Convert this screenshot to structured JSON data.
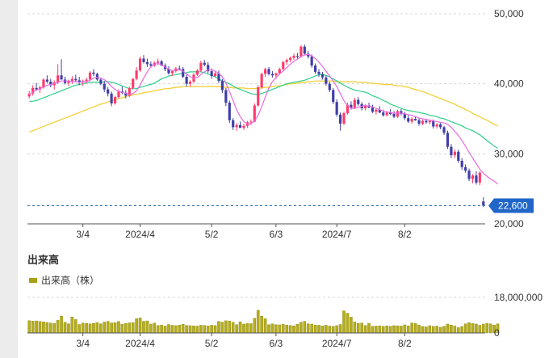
{
  "chart_data": {
    "type": "candlestick",
    "price_axis": {
      "min": 20000,
      "max": 50000,
      "ticks": [
        "50,000",
        "40,000",
        "30,000",
        "20,000"
      ]
    },
    "x_ticks": [
      "3/4",
      "2024/4",
      "5/2",
      "6/3",
      "2024/7",
      "8/2"
    ],
    "last_price": {
      "value": 22600,
      "label": "22,600"
    },
    "candles": [
      [
        38200,
        39000,
        37900,
        38600
      ],
      [
        38600,
        39800,
        38300,
        39400
      ],
      [
        39400,
        40100,
        39000,
        39200
      ],
      [
        39200,
        39700,
        38700,
        39500
      ],
      [
        39500,
        40800,
        39300,
        40600
      ],
      [
        40600,
        41200,
        40100,
        40300
      ],
      [
        40300,
        40700,
        39500,
        39800
      ],
      [
        39800,
        40500,
        39200,
        40200
      ],
      [
        40200,
        42800,
        40000,
        41200
      ],
      [
        41200,
        43500,
        40800,
        40600
      ],
      [
        40600,
        41000,
        39900,
        40100
      ],
      [
        40100,
        40600,
        39700,
        40400
      ],
      [
        40400,
        41100,
        40000,
        40700
      ],
      [
        40700,
        41300,
        40200,
        40500
      ],
      [
        40500,
        41000,
        39800,
        40200
      ],
      [
        40200,
        40600,
        39700,
        40400
      ],
      [
        40400,
        40900,
        40100,
        40600
      ],
      [
        40600,
        41800,
        40400,
        41600
      ],
      [
        41600,
        42100,
        41100,
        41400
      ],
      [
        41400,
        41600,
        40400,
        40600
      ],
      [
        40600,
        40900,
        39800,
        40000
      ],
      [
        40000,
        40400,
        38800,
        39200
      ],
      [
        39200,
        39500,
        38200,
        38600
      ],
      [
        38600,
        38900,
        36800,
        37200
      ],
      [
        37200,
        38300,
        37000,
        38100
      ],
      [
        38100,
        39200,
        37900,
        38900
      ],
      [
        38900,
        39600,
        38500,
        38700
      ],
      [
        38700,
        39100,
        37900,
        38300
      ],
      [
        38300,
        39600,
        38100,
        39400
      ],
      [
        39400,
        40800,
        39200,
        40700
      ],
      [
        40700,
        42400,
        40500,
        41900
      ],
      [
        41900,
        43900,
        41700,
        43600
      ],
      [
        43600,
        44100,
        42900,
        43100
      ],
      [
        43100,
        43600,
        42400,
        42800
      ],
      [
        42800,
        43200,
        42300,
        42600
      ],
      [
        42600,
        43200,
        42400,
        43000
      ],
      [
        43000,
        43600,
        42700,
        43200
      ],
      [
        43200,
        43400,
        42500,
        42600
      ],
      [
        42600,
        42900,
        41800,
        42100
      ],
      [
        42100,
        42500,
        41300,
        41500
      ],
      [
        41500,
        42000,
        41100,
        41800
      ],
      [
        41800,
        42400,
        41600,
        42200
      ],
      [
        42200,
        42600,
        41900,
        42100
      ],
      [
        42100,
        42400,
        40800,
        41000
      ],
      [
        41000,
        41400,
        39600,
        40000
      ],
      [
        40000,
        40500,
        39600,
        40300
      ],
      [
        40300,
        41500,
        40100,
        41300
      ],
      [
        41300,
        42100,
        41100,
        41900
      ],
      [
        41900,
        43300,
        41700,
        43000
      ],
      [
        43000,
        43400,
        42500,
        42700
      ],
      [
        42700,
        43100,
        41500,
        41800
      ],
      [
        41800,
        42200,
        40700,
        41100
      ],
      [
        41100,
        41800,
        40900,
        41500
      ],
      [
        41500,
        41900,
        40100,
        40400
      ],
      [
        40400,
        40700,
        38700,
        39100
      ],
      [
        39100,
        39400,
        36800,
        37300
      ],
      [
        37300,
        37600,
        34400,
        34800
      ],
      [
        34800,
        35100,
        33400,
        33800
      ],
      [
        33800,
        34400,
        33300,
        34100
      ],
      [
        34100,
        34600,
        33800,
        33700
      ],
      [
        33700,
        34300,
        33400,
        34000
      ],
      [
        34000,
        34700,
        33700,
        34500
      ],
      [
        34500,
        34900,
        34100,
        34600
      ],
      [
        34600,
        37200,
        34500,
        36900
      ],
      [
        36900,
        39800,
        36700,
        39500
      ],
      [
        39500,
        41600,
        39300,
        41400
      ],
      [
        41400,
        42300,
        41000,
        42100
      ],
      [
        42100,
        42400,
        41200,
        41400
      ],
      [
        41400,
        41800,
        40900,
        41200
      ],
      [
        41200,
        41600,
        40700,
        41500
      ],
      [
        41500,
        42300,
        41300,
        42100
      ],
      [
        42100,
        43300,
        41900,
        43100
      ],
      [
        43100,
        43600,
        42700,
        43400
      ],
      [
        43400,
        43900,
        43100,
        43700
      ],
      [
        43700,
        44300,
        43400,
        44000
      ],
      [
        44000,
        44400,
        43600,
        43900
      ],
      [
        43900,
        45500,
        43700,
        45300
      ],
      [
        45300,
        45600,
        44100,
        44300
      ],
      [
        44300,
        44700,
        43600,
        43900
      ],
      [
        43900,
        44200,
        42300,
        42600
      ],
      [
        42600,
        42900,
        41400,
        41700
      ],
      [
        41700,
        42100,
        41000,
        41400
      ],
      [
        41400,
        41700,
        40600,
        40900
      ],
      [
        40900,
        41200,
        39700,
        40000
      ],
      [
        40000,
        40300,
        38800,
        39100
      ],
      [
        39100,
        39400,
        37100,
        37400
      ],
      [
        37400,
        37800,
        35300,
        35600
      ],
      [
        35600,
        35900,
        33300,
        34300
      ],
      [
        34300,
        36000,
        34100,
        35800
      ],
      [
        35800,
        37300,
        35600,
        37000
      ],
      [
        37000,
        37500,
        36300,
        36600
      ],
      [
        36600,
        38000,
        36400,
        37700
      ],
      [
        37700,
        38100,
        36800,
        37100
      ],
      [
        37100,
        37400,
        36200,
        36500
      ],
      [
        36500,
        37100,
        36200,
        36900
      ],
      [
        36900,
        37300,
        36500,
        36600
      ],
      [
        36600,
        37000,
        35800,
        36000
      ],
      [
        36000,
        36500,
        35600,
        36300
      ],
      [
        36300,
        36800,
        35800,
        35900
      ],
      [
        35900,
        36300,
        35300,
        35500
      ],
      [
        35500,
        36100,
        35300,
        35900
      ],
      [
        35900,
        36400,
        35500,
        35700
      ],
      [
        35700,
        36100,
        35100,
        35300
      ],
      [
        35300,
        36300,
        35100,
        36100
      ],
      [
        36100,
        36400,
        35500,
        35700
      ],
      [
        35700,
        36000,
        34800,
        35100
      ],
      [
        35100,
        35600,
        34400,
        34600
      ],
      [
        34600,
        35200,
        34300,
        35000
      ],
      [
        35000,
        35400,
        34700,
        34800
      ],
      [
        34800,
        35100,
        34000,
        34300
      ],
      [
        34300,
        34900,
        34100,
        34700
      ],
      [
        34700,
        35000,
        34300,
        34500
      ],
      [
        34500,
        34900,
        34200,
        34700
      ],
      [
        34700,
        34900,
        33600,
        33900
      ],
      [
        33900,
        34400,
        33600,
        34200
      ],
      [
        34200,
        34400,
        33500,
        33800
      ],
      [
        33800,
        34000,
        32700,
        33000
      ],
      [
        33000,
        33300,
        30700,
        31000
      ],
      [
        31000,
        31400,
        29400,
        29800
      ],
      [
        29800,
        30600,
        29400,
        30300
      ],
      [
        30300,
        30600,
        28700,
        29000
      ],
      [
        29000,
        29400,
        27700,
        28100
      ],
      [
        28100,
        28500,
        27300,
        27600
      ],
      [
        27600,
        27900,
        26100,
        26400
      ],
      [
        26400,
        27100,
        25800,
        26900
      ],
      [
        26900,
        27500,
        25600,
        25900
      ],
      [
        25900,
        27500,
        25500,
        27300
      ],
      [
        23200,
        23800,
        22400,
        22600
      ]
    ],
    "ma_short": [
      38400,
      38800,
      39100,
      39300,
      39500,
      39800,
      39900,
      40000,
      40200,
      40400,
      40400,
      40400,
      40300,
      40300,
      40200,
      40300,
      40300,
      40500,
      40800,
      40900,
      40800,
      40600,
      40200,
      39600,
      39200,
      38900,
      38800,
      38600,
      38500,
      38600,
      39000,
      39800,
      40800,
      41700,
      42400,
      42800,
      42900,
      42700,
      42400,
      42100,
      41900,
      41900,
      42000,
      41800,
      41400,
      41000,
      40800,
      40900,
      41300,
      41700,
      42000,
      42000,
      41800,
      41500,
      41000,
      40100,
      38900,
      37600,
      36300,
      35300,
      34600,
      34300,
      34300,
      34700,
      35500,
      36700,
      38100,
      39400,
      40300,
      40900,
      41400,
      41800,
      42300,
      42800,
      43200,
      43500,
      43900,
      44100,
      44200,
      44000,
      43600,
      43100,
      42500,
      41800,
      41100,
      40400,
      39600,
      38600,
      37600,
      36900,
      36500,
      36500,
      36600,
      36800,
      36900,
      36800,
      36700,
      36500,
      36300,
      36100,
      36000,
      35900,
      35800,
      35800,
      35800,
      35700,
      35600,
      35500,
      35300,
      35100,
      35000,
      34900,
      34800,
      34700,
      34600,
      34500,
      34400,
      34200,
      33800,
      33200,
      32600,
      31900,
      31100,
      30200,
      29400,
      28600,
      27800,
      27200,
      26800,
      26400,
      26100,
      25700
    ],
    "ma_mid": [
      37500,
      37500,
      37600,
      37800,
      38000,
      38200,
      38400,
      38600,
      38800,
      39000,
      39200,
      39400,
      39600,
      39800,
      39900,
      40000,
      40100,
      40200,
      40200,
      40200,
      40200,
      40300,
      40300,
      40200,
      40100,
      39900,
      39700,
      39500,
      39300,
      39300,
      39300,
      39500,
      39600,
      39800,
      39900,
      40100,
      40400,
      40700,
      40900,
      41100,
      41200,
      41300,
      41400,
      41500,
      41600,
      41700,
      41700,
      41700,
      41700,
      41600,
      41400,
      41200,
      41000,
      40700,
      40400,
      40200,
      40000,
      39700,
      39400,
      39200,
      39000,
      38800,
      38600,
      38500,
      38500,
      38600,
      38800,
      39000,
      39200,
      39400,
      39600,
      39800,
      40000,
      40100,
      40200,
      40300,
      40400,
      40500,
      40700,
      40900,
      41100,
      41300,
      41300,
      41200,
      41000,
      40700,
      40400,
      40100,
      39800,
      39500,
      39300,
      39100,
      39000,
      38900,
      38800,
      38600,
      38300,
      38100,
      37900,
      37600,
      37400,
      37100,
      36900,
      36700,
      36500,
      36300,
      36200,
      36100,
      36000,
      35900,
      35800,
      35700,
      35500,
      35400,
      35300,
      35100,
      35000,
      34800,
      34600,
      34400,
      34200,
      34000,
      33700,
      33500,
      33300,
      33000,
      32700,
      32300,
      31900,
      31500,
      31100,
      30800
    ],
    "ma_long": [
      33100,
      33300,
      33500,
      33700,
      33900,
      34100,
      34300,
      34500,
      34700,
      34900,
      35100,
      35300,
      35500,
      35700,
      35900,
      36100,
      36300,
      36500,
      36700,
      36900,
      37100,
      37200,
      37400,
      37600,
      37700,
      37900,
      38000,
      38200,
      38300,
      38400,
      38500,
      38600,
      38700,
      38800,
      38900,
      39000,
      39100,
      39200,
      39300,
      39300,
      39400,
      39500,
      39500,
      39600,
      39600,
      39600,
      39600,
      39600,
      39600,
      39600,
      39600,
      39600,
      39600,
      39600,
      39500,
      39500,
      39500,
      39400,
      39400,
      39400,
      39400,
      39300,
      39300,
      39300,
      39400,
      39400,
      39500,
      39500,
      39600,
      39700,
      39700,
      39800,
      39900,
      40000,
      40000,
      40100,
      40200,
      40200,
      40300,
      40300,
      40400,
      40400,
      40400,
      40400,
      40400,
      40400,
      40300,
      40300,
      40300,
      40300,
      40300,
      40300,
      40200,
      40200,
      40200,
      40100,
      40100,
      40000,
      40000,
      39900,
      39900,
      39900,
      39800,
      39700,
      39700,
      39600,
      39500,
      39300,
      39200,
      39000,
      38900,
      38700,
      38500,
      38300,
      38100,
      37900,
      37700,
      37500,
      37300,
      37100,
      36800,
      36600,
      36300,
      36100,
      35800,
      35500,
      35300,
      35000,
      34800,
      34500,
      34200,
      34000
    ],
    "volume": {
      "section_title": "出来高",
      "legend": "出来高（株）",
      "axis_ticks": [
        "18,000,000",
        "0"
      ],
      "max": 18000000,
      "values": [
        6200000,
        6000000,
        6100000,
        5800000,
        5600000,
        5300000,
        5000000,
        4800000,
        6400000,
        8500000,
        5400000,
        4600000,
        8100000,
        6800000,
        4300000,
        5000000,
        4900000,
        4600000,
        4900000,
        5300000,
        4600000,
        5500000,
        5900000,
        5100000,
        5200000,
        5800000,
        4400000,
        4800000,
        5100000,
        5300000,
        7200000,
        7600000,
        5900000,
        6100000,
        4500000,
        5000000,
        3800000,
        4000000,
        3500000,
        4300000,
        3900000,
        3700000,
        4000000,
        4400000,
        3800000,
        3700000,
        3600000,
        3500000,
        3900000,
        3800000,
        3600000,
        3900000,
        3800000,
        5800000,
        5500000,
        6200000,
        6000000,
        5400000,
        4200000,
        5600000,
        4500000,
        4800000,
        4700000,
        7400000,
        11500000,
        8500000,
        7200000,
        4200000,
        4600000,
        4200000,
        4100000,
        4400000,
        4000000,
        3800000,
        3600000,
        4400000,
        5400000,
        5900000,
        4600000,
        4500000,
        4000000,
        3900000,
        3600000,
        3900000,
        3500000,
        3400000,
        3700000,
        4300000,
        11200000,
        10000000,
        8000000,
        5600000,
        4900000,
        5000000,
        3800000,
        4900000,
        3400000,
        3500000,
        3600000,
        3400000,
        3600000,
        3400000,
        3700000,
        3600000,
        3500000,
        4100000,
        3600000,
        5000000,
        4800000,
        4000000,
        3300000,
        3100000,
        3700000,
        3400000,
        3500000,
        2900000,
        3400000,
        4500000,
        4000000,
        3500000,
        2700000,
        3300000,
        4600000,
        5200000,
        4800000,
        4500000,
        3900000,
        4500000,
        4900000,
        4600000,
        4000000,
        4600000
      ]
    }
  }
}
